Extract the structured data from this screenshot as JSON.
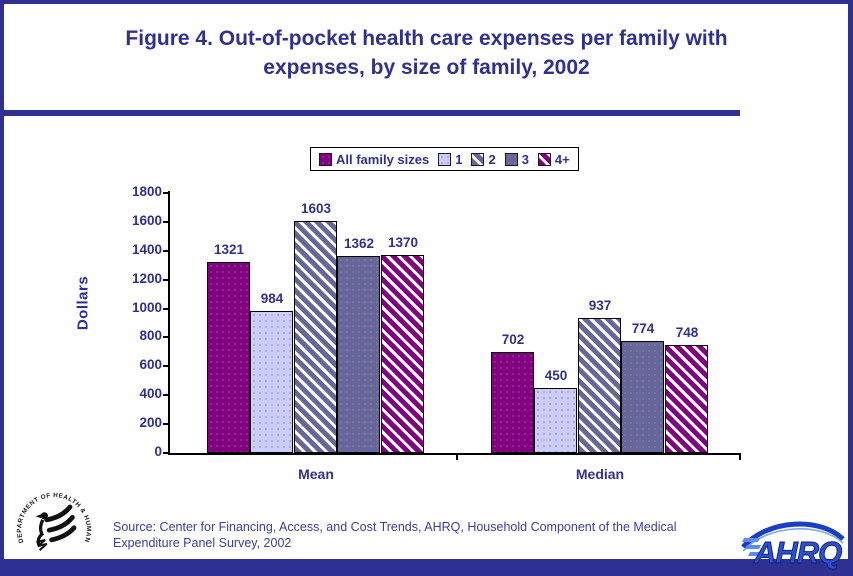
{
  "window": {
    "title_line1": "Figure 4. Out-of-pocket health care expenses per family with",
    "title_line2": "expenses, by size of family, 2002"
  },
  "chart_data": {
    "type": "bar",
    "title": "Figure 4. Out-of-pocket health care expenses per family with expenses, by size of family, 2002",
    "categories": [
      "Mean",
      "Median"
    ],
    "series": [
      {
        "name": "All family sizes",
        "values": [
          1321,
          702
        ],
        "color": "#800080",
        "pattern": "solid"
      },
      {
        "name": "1",
        "values": [
          984,
          450
        ],
        "color": "#CCCCFF",
        "pattern": "dotted"
      },
      {
        "name": "2",
        "values": [
          1603,
          937
        ],
        "color": "#666699",
        "pattern": "diagonal-hatch"
      },
      {
        "name": "3",
        "values": [
          1362,
          774
        ],
        "color": "#666699",
        "pattern": "solid"
      },
      {
        "name": "4+",
        "values": [
          1370,
          748
        ],
        "color": "#800080",
        "pattern": "diagonal-hatch"
      }
    ],
    "ylabel": "Dollars",
    "ylim": [
      0,
      1800
    ],
    "ytick_step": 200,
    "legend_position": "top-center",
    "grid": false
  },
  "footer": {
    "source_line": "Source: Center for Financing, Access, and Cost Trends, AHRQ, Household Component of the Medical Expenditure Panel Survey, 2002",
    "hhs_seal_text": "DEPARTMENT OF HEALTH & HUMAN SERVICES · USA",
    "ahrq_logo_text": "AHRQ"
  },
  "colors": {
    "navy": "#2E3192",
    "label_text": "#2E3192",
    "purple": "#800080",
    "lavender": "#CCCCFF",
    "slate": "#666699",
    "hatch_stripe": "#FFFFFF"
  }
}
